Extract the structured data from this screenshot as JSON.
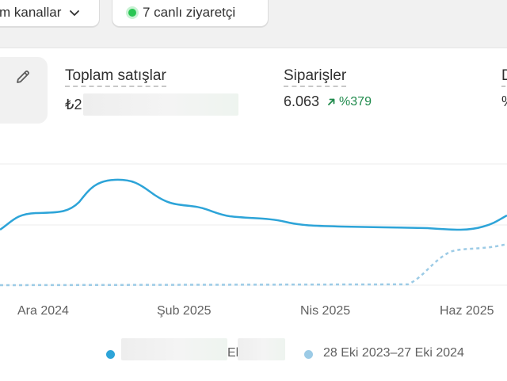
{
  "topbar": {
    "channels_label": "m kanallar",
    "visitors_label": "7 canlı ziyaretçi"
  },
  "metrics": [
    {
      "title": "Toplam satışlar",
      "value": "₺2",
      "value_redacted": true
    },
    {
      "title": "Siparişler",
      "value": "6.063",
      "trend": "%379",
      "trend_direction": "up"
    },
    {
      "title": "D",
      "value": "%"
    }
  ],
  "chart_data": {
    "type": "line",
    "x_tick_labels": [
      "Ara 2024",
      "Şub 2025",
      "Nis 2025",
      "Haz 2025"
    ],
    "series": [
      {
        "name": "",
        "style": "solid",
        "color": "#2da4d8"
      },
      {
        "name": "28 Eki 2023–27 Eki 2024",
        "style": "dashed",
        "color": "#9ccbe6"
      }
    ],
    "grid": true
  },
  "legend": {
    "current_suffix": "Ek",
    "comparison_label": "28 Eki 2023–27 Eki 2024"
  },
  "colors": {
    "primary_line": "#2da4d8",
    "comparison_line": "#9ccbe6",
    "trend_up": "#1f8a4c",
    "live": "#29c653"
  }
}
